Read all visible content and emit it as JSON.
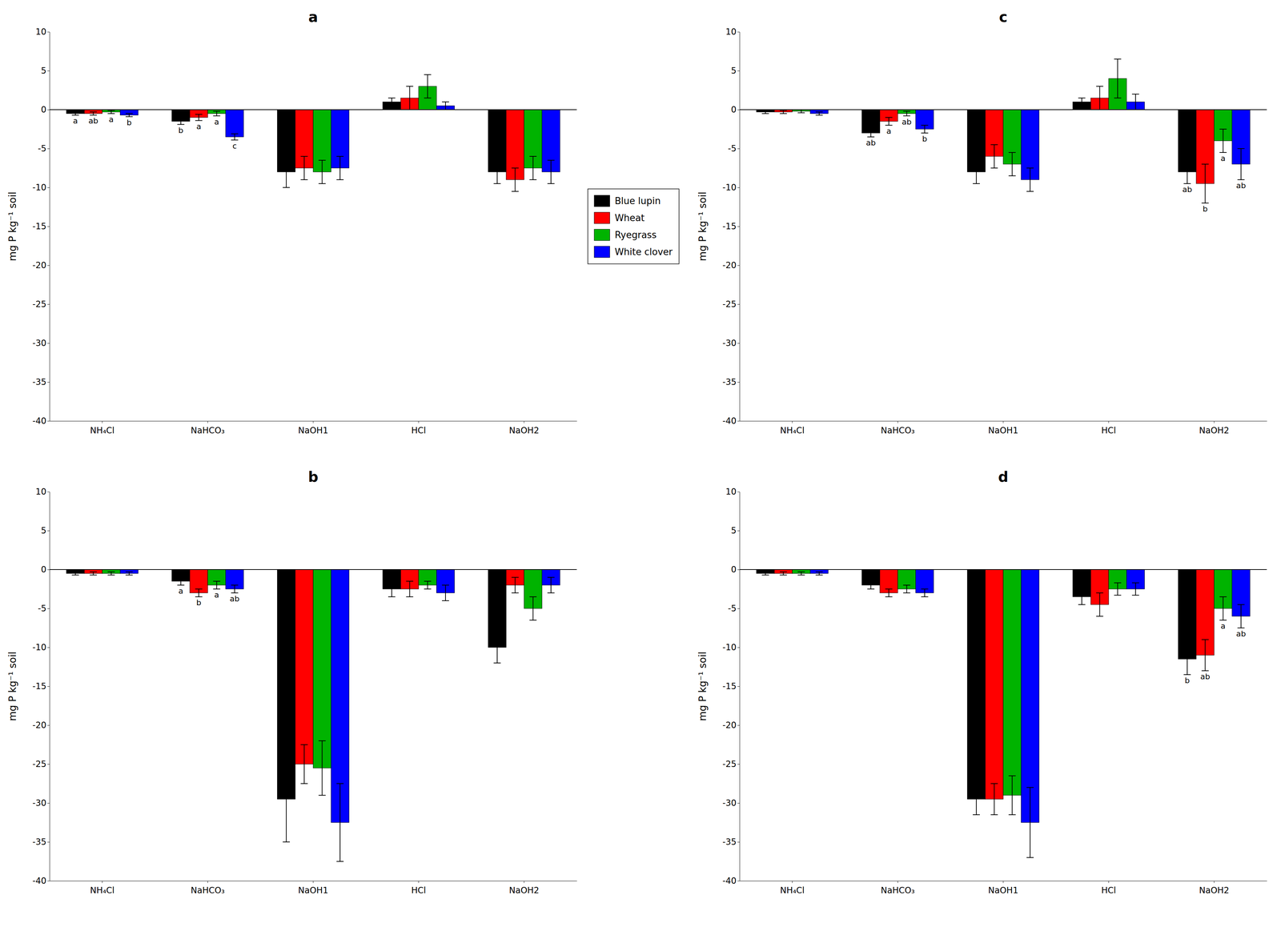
{
  "chart_data": [
    {
      "type": "bar",
      "title": "a",
      "categories": [
        "NH₄Cl",
        "NaHCO₃",
        "NaOH1",
        "HCl",
        "NaOH2"
      ],
      "ylabel": "mg P kg⁻¹ soil",
      "ylim": [
        -40,
        10
      ],
      "yticks": [
        10,
        5,
        0,
        -5,
        -10,
        -15,
        -20,
        -25,
        -30,
        -35,
        -40
      ],
      "grid": false,
      "series": [
        {
          "name": "Blue lupin",
          "color": "#000000",
          "values": [
            -0.5,
            -1.5,
            -8.0,
            1.0,
            -8.0
          ],
          "errors": [
            0.2,
            0.4,
            2.0,
            0.5,
            1.5
          ],
          "annotations": [
            "a",
            "b",
            null,
            null,
            null
          ]
        },
        {
          "name": "Wheat",
          "color": "#ff0000",
          "values": [
            -0.5,
            -1.0,
            -7.5,
            1.5,
            -9.0
          ],
          "errors": [
            0.2,
            0.4,
            1.5,
            1.5,
            1.5
          ],
          "annotations": [
            "ab",
            "a",
            null,
            null,
            null
          ]
        },
        {
          "name": "Ryegrass",
          "color": "#00b300",
          "values": [
            -0.3,
            -0.5,
            -8.0,
            3.0,
            -7.5
          ],
          "errors": [
            0.2,
            0.3,
            1.5,
            1.5,
            1.5
          ],
          "annotations": [
            "a",
            "a",
            null,
            null,
            null
          ]
        },
        {
          "name": "White clover",
          "color": "#0000ff",
          "values": [
            -0.7,
            -3.5,
            -7.5,
            0.5,
            -8.0
          ],
          "errors": [
            0.2,
            0.4,
            1.5,
            0.5,
            1.5
          ],
          "annotations": [
            "b",
            "c",
            null,
            null,
            null
          ]
        }
      ]
    },
    {
      "type": "bar",
      "title": "c",
      "categories": [
        "NH₄Cl",
        "NaHCO₃",
        "NaOH1",
        "HCl",
        "NaOH2"
      ],
      "ylabel": "mg P kg⁻¹ soil",
      "ylim": [
        -40,
        10
      ],
      "yticks": [
        10,
        5,
        0,
        -5,
        -10,
        -15,
        -20,
        -25,
        -30,
        -35,
        -40
      ],
      "grid": false,
      "series": [
        {
          "color": "#000000",
          "values": [
            -0.3,
            -3.0,
            -8.0,
            1.0,
            -8.0
          ],
          "errors": [
            0.2,
            0.5,
            1.5,
            0.5,
            1.5
          ],
          "annotations": [
            null,
            "ab",
            null,
            null,
            "ab"
          ]
        },
        {
          "color": "#ff0000",
          "values": [
            -0.3,
            -1.5,
            -6.0,
            1.5,
            -9.5
          ],
          "errors": [
            0.2,
            0.5,
            1.5,
            1.5,
            2.5
          ],
          "annotations": [
            null,
            "a",
            null,
            null,
            "b"
          ]
        },
        {
          "color": "#00b300",
          "values": [
            -0.2,
            -0.5,
            -7.0,
            4.0,
            -4.0
          ],
          "errors": [
            0.2,
            0.3,
            1.5,
            2.5,
            1.5
          ],
          "annotations": [
            null,
            "ab",
            null,
            null,
            "a"
          ]
        },
        {
          "color": "#0000ff",
          "values": [
            -0.5,
            -2.5,
            -9.0,
            1.0,
            -7.0
          ],
          "errors": [
            0.2,
            0.5,
            1.5,
            1.0,
            2.0
          ],
          "annotations": [
            null,
            "b",
            null,
            null,
            "ab"
          ]
        }
      ]
    },
    {
      "type": "bar",
      "title": "b",
      "categories": [
        "NH₄Cl",
        "NaHCO₃",
        "NaOH1",
        "HCl",
        "NaOH2"
      ],
      "ylabel": "mg P kg⁻¹ soil",
      "ylim": [
        -40,
        10
      ],
      "yticks": [
        10,
        5,
        0,
        -5,
        -10,
        -15,
        -20,
        -25,
        -30,
        -35,
        -40
      ],
      "grid": false,
      "series": [
        {
          "color": "#000000",
          "values": [
            -0.5,
            -1.5,
            -29.5,
            -2.5,
            -10.0
          ],
          "errors": [
            0.2,
            0.5,
            5.5,
            1.0,
            2.0
          ],
          "annotations": [
            null,
            "a",
            null,
            null,
            null
          ]
        },
        {
          "color": "#ff0000",
          "values": [
            -0.5,
            -3.0,
            -25.0,
            -2.5,
            -2.0
          ],
          "errors": [
            0.2,
            0.5,
            2.5,
            1.0,
            1.0
          ],
          "annotations": [
            null,
            "b",
            null,
            null,
            null
          ]
        },
        {
          "color": "#00b300",
          "values": [
            -0.5,
            -2.0,
            -25.5,
            -2.0,
            -5.0
          ],
          "errors": [
            0.2,
            0.5,
            3.5,
            0.5,
            1.5
          ],
          "annotations": [
            null,
            "a",
            null,
            null,
            null
          ]
        },
        {
          "color": "#0000ff",
          "values": [
            -0.5,
            -2.5,
            -32.5,
            -3.0,
            -2.0
          ],
          "errors": [
            0.2,
            0.5,
            5.0,
            1.0,
            1.0
          ],
          "annotations": [
            null,
            "ab",
            null,
            null,
            null
          ]
        }
      ]
    },
    {
      "type": "bar",
      "title": "d",
      "categories": [
        "NH₄Cl",
        "NaHCO₃",
        "NaOH1",
        "HCl",
        "NaOH2"
      ],
      "ylabel": "mg P kg⁻¹ soil",
      "ylim": [
        -40,
        10
      ],
      "yticks": [
        10,
        5,
        0,
        -5,
        -10,
        -15,
        -20,
        -25,
        -30,
        -35,
        -40
      ],
      "grid": false,
      "series": [
        {
          "color": "#000000",
          "values": [
            -0.5,
            -2.0,
            -29.5,
            -3.5,
            -11.5
          ],
          "errors": [
            0.2,
            0.5,
            2.0,
            1.0,
            2.0
          ],
          "annotations": [
            null,
            null,
            null,
            null,
            "b"
          ]
        },
        {
          "color": "#ff0000",
          "values": [
            -0.5,
            -3.0,
            -29.5,
            -4.5,
            -11.0
          ],
          "errors": [
            0.2,
            0.5,
            2.0,
            1.5,
            2.0
          ],
          "annotations": [
            null,
            null,
            null,
            null,
            "ab"
          ]
        },
        {
          "color": "#00b300",
          "values": [
            -0.5,
            -2.5,
            -29.0,
            -2.5,
            -5.0
          ],
          "errors": [
            0.2,
            0.5,
            2.5,
            0.8,
            1.5
          ],
          "annotations": [
            null,
            null,
            null,
            null,
            "a"
          ]
        },
        {
          "color": "#0000ff",
          "values": [
            -0.5,
            -3.0,
            -32.5,
            -2.5,
            -6.0
          ],
          "errors": [
            0.2,
            0.5,
            4.5,
            0.8,
            1.5
          ],
          "annotations": [
            null,
            null,
            null,
            null,
            "ab"
          ]
        }
      ]
    }
  ]
}
